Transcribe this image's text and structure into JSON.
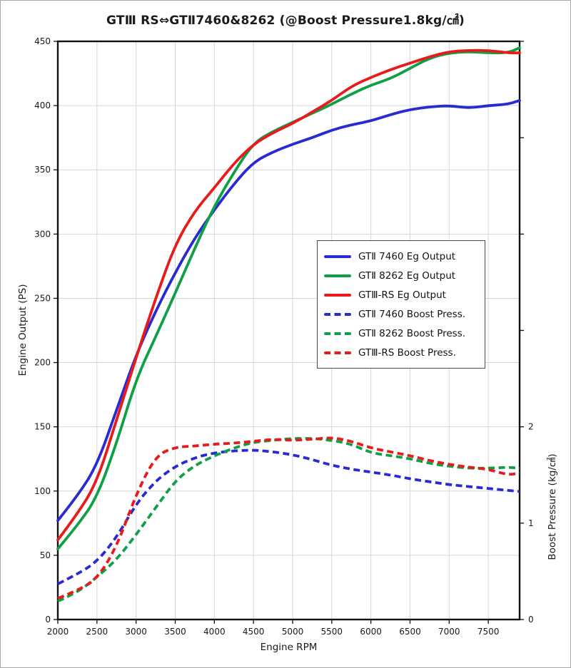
{
  "window": {
    "background": "#ffffff",
    "border_color": "#a8a8a8"
  },
  "chart_data": {
    "type": "line",
    "title": "GTⅢ RS⇔GTⅡ7460&8262 (@Boost Pressure1.8kg/㎠)",
    "xlabel": "Engine RPM",
    "ylabel_left": "Engine Output (PS)",
    "ylabel_right": "Boost Pressure (kg/㎠)",
    "xlim": [
      2000,
      7900
    ],
    "ylim_left": [
      0,
      450
    ],
    "ylim_right": [
      0,
      6
    ],
    "grid": true,
    "grid_color": "#d6d6d6",
    "axis_color": "#111111",
    "tick_color": "#1a1a1a",
    "legend_position": "center-right",
    "legend_border_color": "#4a4a4a",
    "x_ticks": [
      2000,
      2500,
      3000,
      3500,
      4000,
      4500,
      5000,
      5500,
      6000,
      6500,
      7000,
      7500
    ],
    "y_ticks_left": [
      0,
      50,
      100,
      150,
      200,
      250,
      300,
      350,
      400,
      450
    ],
    "y_ticks_right_labeled": [
      0,
      1,
      2
    ],
    "y_ticks_right_unlabeled": [
      3,
      4,
      5,
      6
    ],
    "x": [
      2000,
      2250,
      2500,
      2750,
      3000,
      3250,
      3500,
      3750,
      4000,
      4250,
      4500,
      4750,
      5000,
      5250,
      5500,
      5750,
      6000,
      6250,
      6500,
      6750,
      7000,
      7250,
      7500,
      7750,
      7900
    ],
    "series": [
      {
        "name": "GTⅡ 7460 Eg Output",
        "axis": "left",
        "style": "solid",
        "color": "#2a2ad2",
        "values": [
          77,
          96,
          120,
          163,
          206,
          240,
          270,
          297,
          319,
          339,
          356,
          364,
          370,
          375,
          381,
          385,
          388,
          393,
          397,
          399,
          400,
          398,
          400,
          401,
          404
        ]
      },
      {
        "name": "GTⅡ 8262 Eg Output",
        "axis": "left",
        "style": "solid",
        "color": "#0f9f47",
        "values": [
          55,
          73,
          95,
          137,
          187,
          220,
          254,
          289,
          322,
          348,
          371,
          380,
          387,
          394,
          401,
          409,
          416,
          421,
          429,
          437,
          441,
          442,
          441,
          441,
          445
        ]
      },
      {
        "name": "GTⅢ-RS Eg Output",
        "axis": "left",
        "style": "solid",
        "color": "#e81a1a",
        "values": [
          62,
          82,
          107,
          155,
          204,
          250,
          292,
          318,
          336,
          355,
          370,
          379,
          386,
          395,
          404,
          415,
          422,
          428,
          433,
          438,
          442,
          443,
          443,
          441,
          441
        ]
      },
      {
        "name": "GTⅡ 7460 Boost Press.",
        "axis": "right",
        "style": "dashed",
        "color": "#2a2ad2",
        "values": [
          0.37,
          0.47,
          0.6,
          0.85,
          1.2,
          1.44,
          1.59,
          1.68,
          1.73,
          1.75,
          1.76,
          1.74,
          1.71,
          1.66,
          1.6,
          1.56,
          1.53,
          1.5,
          1.46,
          1.43,
          1.4,
          1.38,
          1.36,
          1.34,
          1.33
        ]
      },
      {
        "name": "GTⅡ 8262 Boost Press.",
        "axis": "right",
        "style": "dashed",
        "color": "#0f9f47",
        "values": [
          0.19,
          0.28,
          0.44,
          0.62,
          0.88,
          1.16,
          1.44,
          1.6,
          1.7,
          1.78,
          1.84,
          1.86,
          1.88,
          1.88,
          1.86,
          1.82,
          1.73,
          1.7,
          1.67,
          1.62,
          1.59,
          1.57,
          1.57,
          1.58,
          1.57
        ]
      },
      {
        "name": "GTⅢ-RS Boost Press.",
        "axis": "right",
        "style": "dashed",
        "color": "#e81a1a",
        "values": [
          0.22,
          0.3,
          0.42,
          0.75,
          1.3,
          1.7,
          1.79,
          1.8,
          1.82,
          1.83,
          1.85,
          1.87,
          1.86,
          1.87,
          1.89,
          1.85,
          1.78,
          1.74,
          1.7,
          1.65,
          1.61,
          1.58,
          1.56,
          1.5,
          1.52
        ]
      }
    ]
  }
}
